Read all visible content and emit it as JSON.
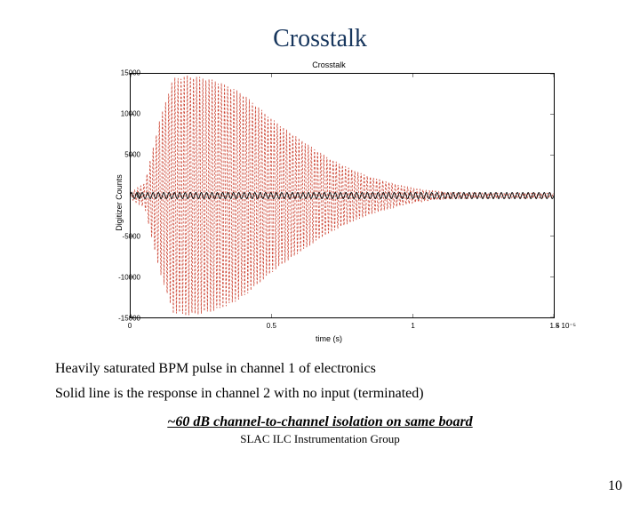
{
  "slide": {
    "title": "Crosstalk",
    "title_color": "#17365d",
    "title_fontsize": 28
  },
  "chart": {
    "type": "line",
    "title": "Crosstalk",
    "title_fontsize": 9,
    "xlabel": "time (s)",
    "ylabel": "Digitizer Counts",
    "label_fontsize": 9,
    "xlim": [
      0,
      1.5
    ],
    "xexponent": "× 10⁻⁵",
    "xticks": [
      0,
      0.5,
      1,
      1.5
    ],
    "xtick_labels": [
      "0",
      "0.5",
      "1",
      "1.5"
    ],
    "ylim": [
      -15000,
      15000
    ],
    "yticks": [
      -15000,
      -10000,
      -5000,
      0,
      5000,
      10000,
      15000
    ],
    "ytick_labels": [
      "-15000",
      "-10000",
      "-5000",
      "0",
      "5000",
      "10000",
      "15000"
    ],
    "background_color": "#ffffff",
    "axis_color": "#000000",
    "series": [
      {
        "name": "channel1_saturated",
        "color": "#cc4433",
        "line_style": "dashed",
        "line_width": 0.8,
        "envelope": [
          {
            "t": 0.0,
            "amp": 400
          },
          {
            "t": 0.05,
            "amp": 1500
          },
          {
            "t": 0.1,
            "amp": 9000
          },
          {
            "t": 0.15,
            "amp": 14500
          },
          {
            "t": 0.2,
            "amp": 14800
          },
          {
            "t": 0.25,
            "amp": 14600
          },
          {
            "t": 0.3,
            "amp": 14200
          },
          {
            "t": 0.35,
            "amp": 13500
          },
          {
            "t": 0.4,
            "amp": 12500
          },
          {
            "t": 0.45,
            "amp": 11000
          },
          {
            "t": 0.5,
            "amp": 9500
          },
          {
            "t": 0.55,
            "amp": 8200
          },
          {
            "t": 0.6,
            "amp": 7000
          },
          {
            "t": 0.65,
            "amp": 5800
          },
          {
            "t": 0.7,
            "amp": 4700
          },
          {
            "t": 0.75,
            "amp": 3800
          },
          {
            "t": 0.8,
            "amp": 3000
          },
          {
            "t": 0.85,
            "amp": 2300
          },
          {
            "t": 0.9,
            "amp": 1800
          },
          {
            "t": 0.95,
            "amp": 1300
          },
          {
            "t": 1.0,
            "amp": 900
          },
          {
            "t": 1.05,
            "amp": 650
          },
          {
            "t": 1.1,
            "amp": 500
          },
          {
            "t": 1.15,
            "amp": 400
          },
          {
            "t": 1.2,
            "amp": 350
          },
          {
            "t": 1.25,
            "amp": 320
          },
          {
            "t": 1.3,
            "amp": 310
          },
          {
            "t": 1.35,
            "amp": 310
          },
          {
            "t": 1.4,
            "amp": 310
          },
          {
            "t": 1.45,
            "amp": 310
          },
          {
            "t": 1.5,
            "amp": 310
          }
        ],
        "oscillation_period": 0.011
      },
      {
        "name": "channel2_response",
        "color": "#000000",
        "line_style": "solid",
        "line_width": 0.9,
        "amplitude": 380,
        "oscillation_period": 0.019
      }
    ]
  },
  "captions": {
    "line1": "Heavily saturated BPM pulse in channel 1 of electronics",
    "line2": "Solid line is the response in channel 2 with no input (terminated)",
    "isolation": "~60 dB channel-to-channel isolation on same board",
    "caption_fontsize": 16
  },
  "footer": {
    "text": "SLAC ILC Instrumentation Group",
    "fontsize": 13,
    "page_number": "10"
  }
}
